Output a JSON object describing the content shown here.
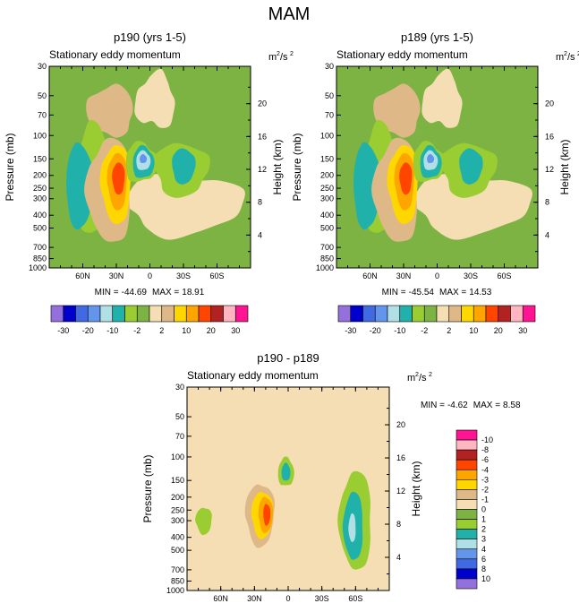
{
  "figure": {
    "title": "MAM"
  },
  "colors": {
    "background": "#ffffff",
    "palette_abs": [
      "#9370DB",
      "#0000CD",
      "#4169E1",
      "#6495ED",
      "#B0E0E6",
      "#20B2AA",
      "#9ACD32",
      "#7CB342",
      "#F5DEB3",
      "#DEB887",
      "#FFD700",
      "#FFA500",
      "#FF4500",
      "#B22222",
      "#FFB6C1",
      "#FF1493"
    ],
    "palette_diff": [
      "#9370DB",
      "#0000CD",
      "#4169E1",
      "#6495ED",
      "#B0E0E6",
      "#20B2AA",
      "#9ACD32",
      "#7CB342",
      "#F5DEB3",
      "#DEB887",
      "#FFD700",
      "#FFA500",
      "#FF4500",
      "#B22222",
      "#FFB6C1",
      "#FF1493"
    ]
  },
  "chart_data": [
    {
      "type": "heatmap",
      "title": "p190 (yrs 1-5)",
      "subtitle_left": "Stationary eddy momentum",
      "units": {
        "base": "m",
        "exp1": "2",
        "mid": "/s",
        "exp2": "2"
      },
      "ylabel": "Pressure (mb)",
      "ylabel_right": "Height (km)",
      "x_ticks": [
        "60N",
        "30N",
        "0",
        "30S",
        "60S"
      ],
      "x_tick_values": [
        60,
        30,
        0,
        -30,
        -60
      ],
      "xlim": [
        90,
        -90
      ],
      "y_ticks": [
        "30",
        "50",
        "70",
        "100",
        "150",
        "200",
        "250",
        "300",
        "400",
        "500",
        "700",
        "850",
        "1000"
      ],
      "y_tick_values": [
        30,
        50,
        70,
        100,
        150,
        200,
        250,
        300,
        400,
        500,
        700,
        850,
        1000
      ],
      "ylim": [
        1000,
        30
      ],
      "height_ticks": [
        "4",
        "8",
        "12",
        "16",
        "20"
      ],
      "height_values": [
        4,
        8,
        12,
        16,
        20
      ],
      "stats": {
        "min_label": "MIN =",
        "min": "-44.69",
        "max_label": "MAX =",
        "max": "18.91"
      },
      "levels": [
        -30,
        -20,
        -10,
        -2,
        2,
        10,
        20,
        30
      ],
      "colorbar_labels": [
        "-30",
        "-20",
        "-10",
        "-2",
        "2",
        "10",
        "20",
        "30"
      ],
      "extremes": {
        "min": -44.69,
        "max": 18.91
      }
    },
    {
      "type": "heatmap",
      "title": "p189 (yrs 1-5)",
      "subtitle_left": "Stationary eddy momentum",
      "units": {
        "base": "m",
        "exp1": "2",
        "mid": "/s",
        "exp2": "2"
      },
      "ylabel": "Pressure (mb)",
      "ylabel_right": "Height (km)",
      "x_ticks": [
        "60N",
        "30N",
        "0",
        "30S",
        "60S"
      ],
      "x_tick_values": [
        60,
        30,
        0,
        -30,
        -60
      ],
      "xlim": [
        90,
        -90
      ],
      "y_ticks": [
        "30",
        "50",
        "70",
        "100",
        "150",
        "200",
        "250",
        "300",
        "400",
        "500",
        "700",
        "850",
        "1000"
      ],
      "y_tick_values": [
        30,
        50,
        70,
        100,
        150,
        200,
        250,
        300,
        400,
        500,
        700,
        850,
        1000
      ],
      "ylim": [
        1000,
        30
      ],
      "height_ticks": [
        "4",
        "8",
        "12",
        "16",
        "20"
      ],
      "height_values": [
        4,
        8,
        12,
        16,
        20
      ],
      "stats": {
        "min_label": "MIN =",
        "min": "-45.54",
        "max_label": "MAX =",
        "max": "14.53"
      },
      "levels": [
        -30,
        -20,
        -10,
        -2,
        2,
        10,
        20,
        30
      ],
      "colorbar_labels": [
        "-30",
        "-20",
        "-10",
        "-2",
        "2",
        "10",
        "20",
        "30"
      ],
      "extremes": {
        "min": -45.54,
        "max": 14.53
      }
    },
    {
      "type": "heatmap",
      "title": "p190 - p189",
      "subtitle_left": "Stationary eddy momentum",
      "units": {
        "base": "m",
        "exp1": "2",
        "mid": "/s",
        "exp2": "2"
      },
      "ylabel": "Pressure (mb)",
      "ylabel_right": "Height (km)",
      "x_ticks": [
        "60N",
        "30N",
        "0",
        "30S",
        "60S"
      ],
      "x_tick_values": [
        60,
        30,
        0,
        -30,
        -60
      ],
      "xlim": [
        90,
        -90
      ],
      "y_ticks": [
        "30",
        "50",
        "70",
        "100",
        "150",
        "200",
        "250",
        "300",
        "400",
        "500",
        "700",
        "850",
        "1000"
      ],
      "y_tick_values": [
        30,
        50,
        70,
        100,
        150,
        200,
        250,
        300,
        400,
        500,
        700,
        850,
        1000
      ],
      "ylim": [
        1000,
        30
      ],
      "height_ticks": [
        "4",
        "8",
        "12",
        "16",
        "20"
      ],
      "height_values": [
        4,
        8,
        12,
        16,
        20
      ],
      "stats": {
        "min_label": "MIN =",
        "min": "-4.62",
        "max_label": "MAX =",
        "max": "8.58"
      },
      "levels": [
        -10,
        -8,
        -6,
        -4,
        -3,
        -2,
        -1,
        0,
        1,
        2,
        3,
        4,
        6,
        8,
        10
      ],
      "colorbar_labels": [
        "-10",
        "-8",
        "-6",
        "-4",
        "-3",
        "-2",
        "-1",
        "0",
        "1",
        "2",
        "3",
        "4",
        "6",
        "8",
        "10"
      ],
      "extremes": {
        "min": -4.62,
        "max": 8.58
      }
    }
  ]
}
